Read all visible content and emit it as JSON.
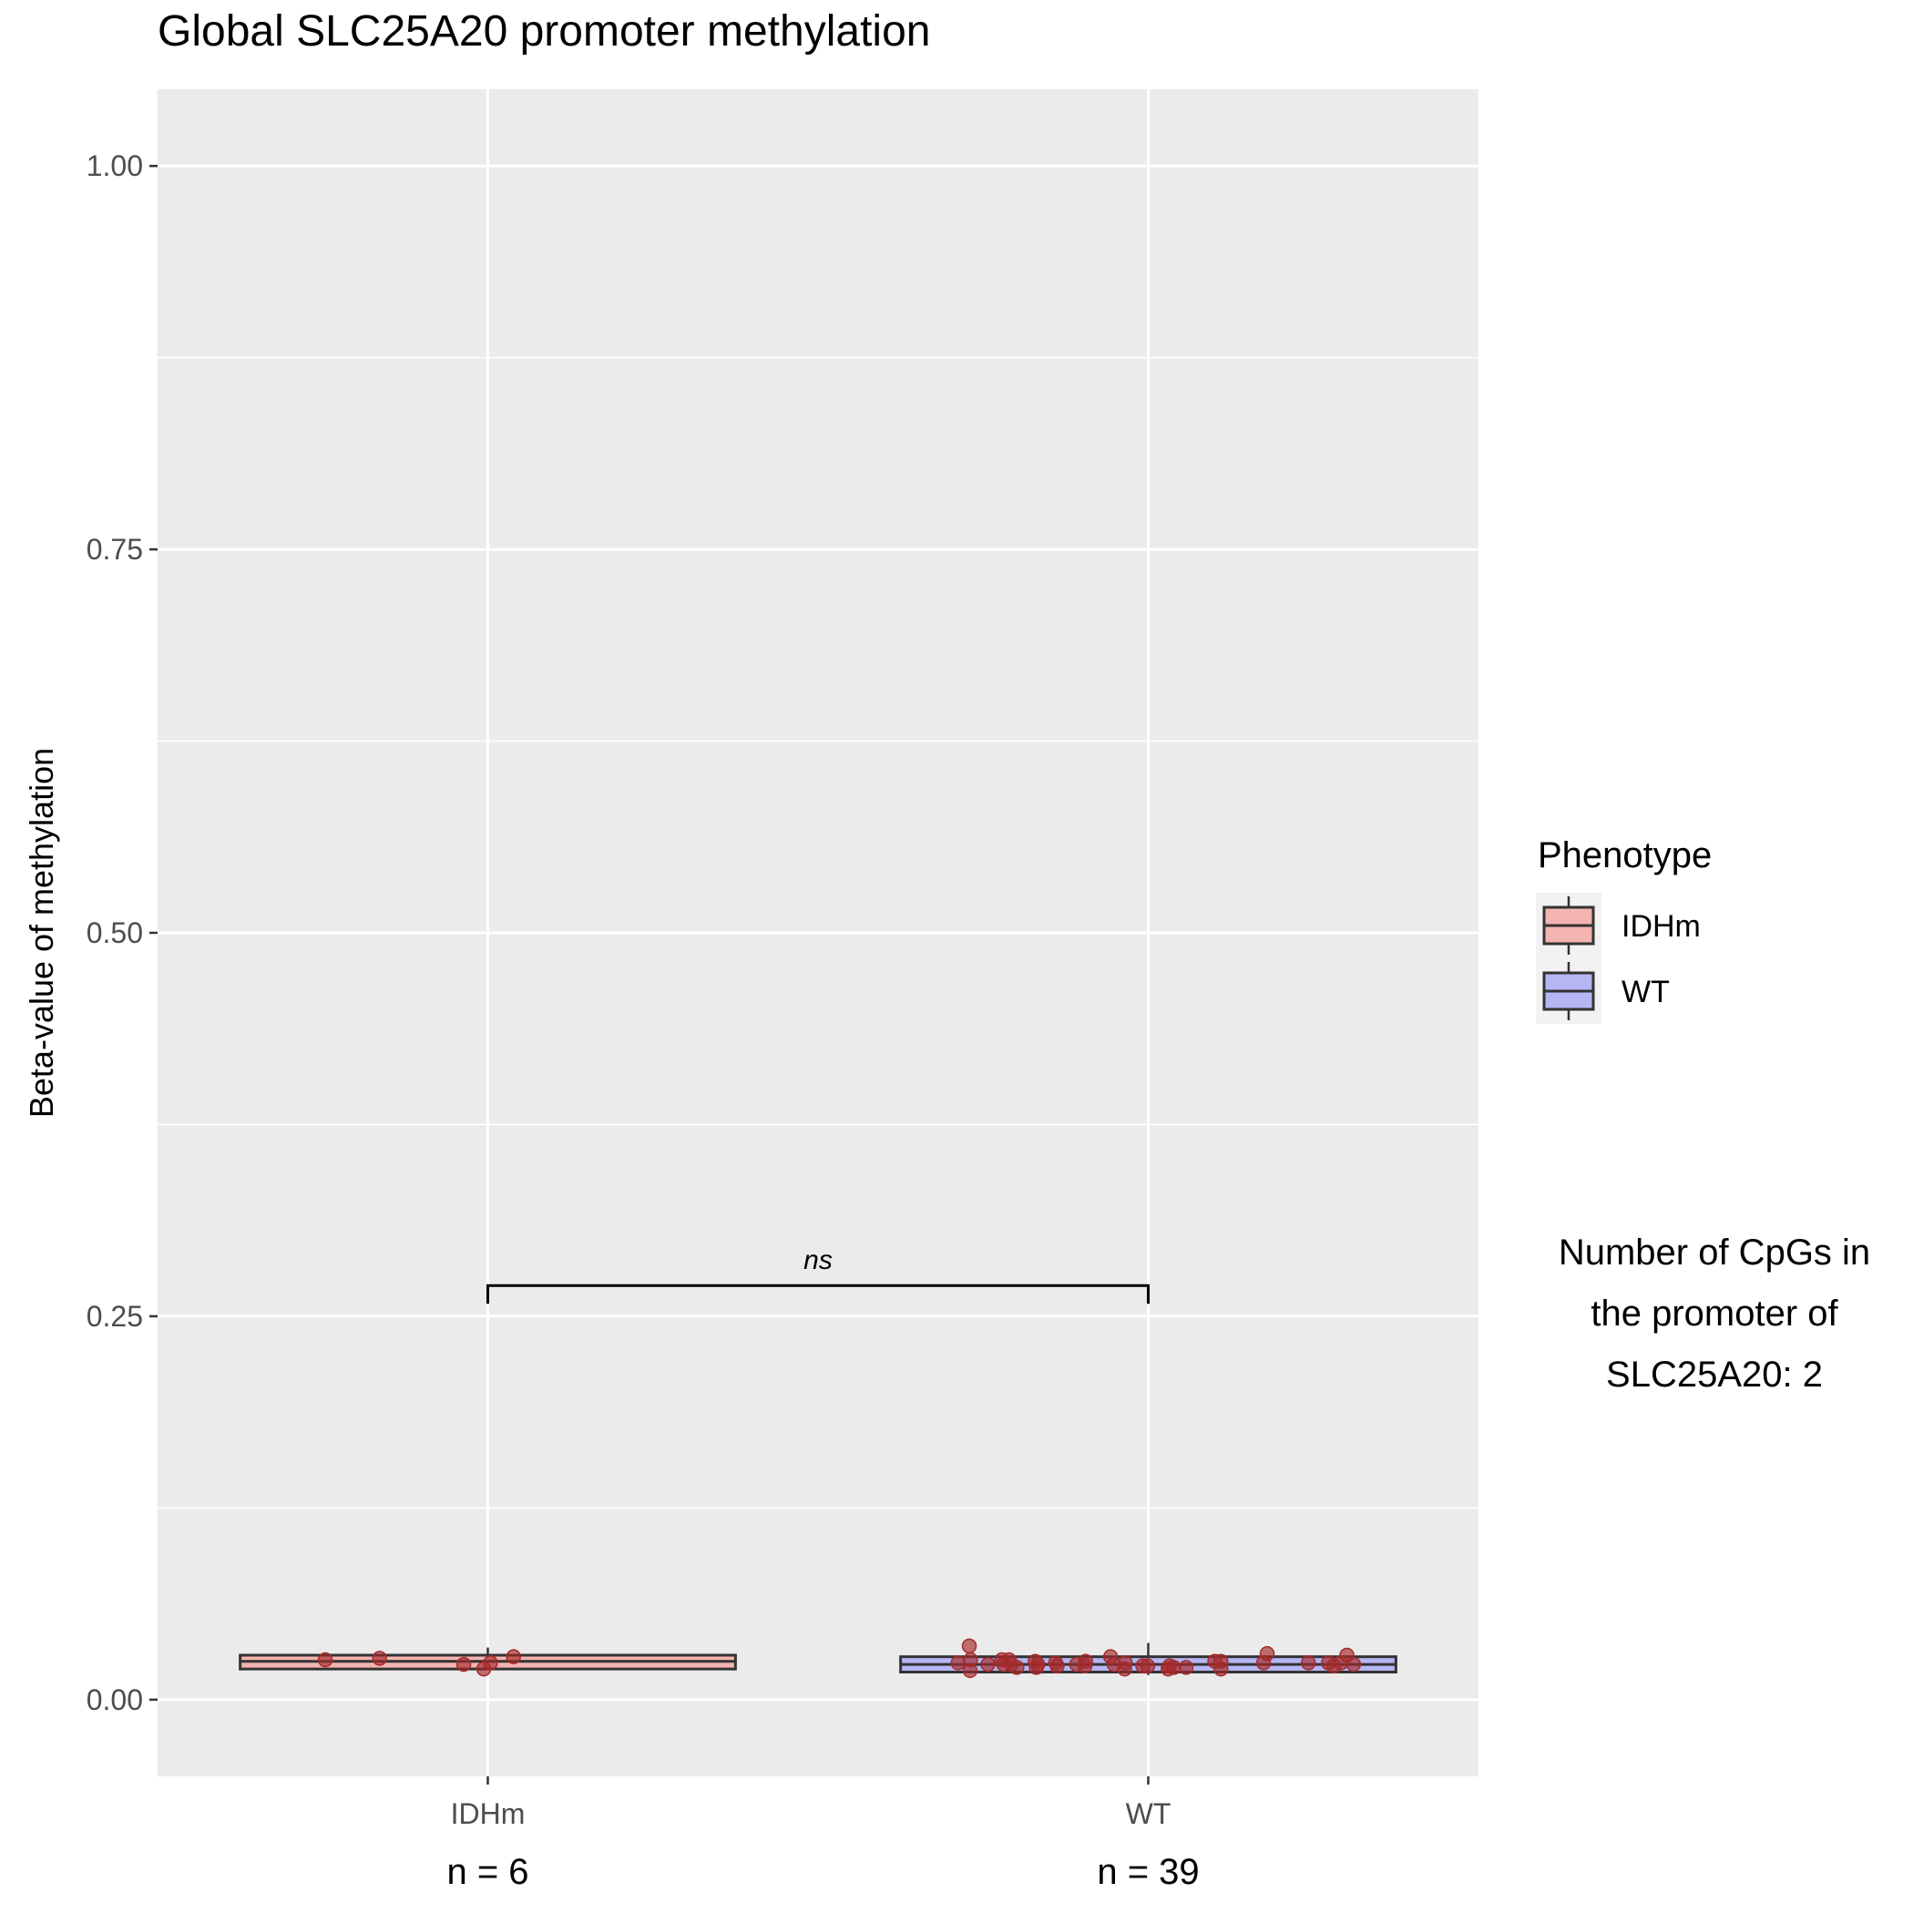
{
  "chart_data": {
    "type": "box",
    "title": "Global SLC25A20 promoter methylation",
    "xlabel": "",
    "ylabel": "Beta-value of methylation",
    "ylim": [
      -0.05,
      1.05
    ],
    "yticks": [
      0.0,
      0.25,
      0.5,
      0.75,
      1.0
    ],
    "ytick_labels": [
      "0.00",
      "0.25",
      "0.50",
      "0.75",
      "1.00"
    ],
    "grid": true,
    "categories": [
      "IDHm",
      "WT"
    ],
    "sample_sizes": [
      "n = 6",
      "n = 39"
    ],
    "boxes": [
      {
        "category": "IDHm",
        "min": 0.02,
        "q1": 0.02,
        "median": 0.025,
        "q3": 0.029,
        "max": 0.034,
        "fill": "#f4b4b1"
      },
      {
        "category": "WT",
        "min": 0.016,
        "q1": 0.018,
        "median": 0.023,
        "q3": 0.028,
        "max": 0.037,
        "fill": "#b6b6f4"
      }
    ],
    "points": [
      {
        "category": "IDHm",
        "y": [
          0.02,
          0.028,
          0.026,
          0.027,
          0.023,
          0.024
        ]
      },
      {
        "category": "WT",
        "y": [
          0.019,
          0.024,
          0.021,
          0.028,
          0.022,
          0.03,
          0.025,
          0.035,
          0.022,
          0.021,
          0.02,
          0.023,
          0.021,
          0.022,
          0.023,
          0.024,
          0.022,
          0.029,
          0.023,
          0.02,
          0.024,
          0.021,
          0.023,
          0.022,
          0.025,
          0.024,
          0.026,
          0.023,
          0.024,
          0.025,
          0.02,
          0.023,
          0.026,
          0.024,
          0.025,
          0.022,
          0.026,
          0.024,
          0.023
        ]
      }
    ],
    "point_color": "#a52a2a",
    "significance": {
      "from": "IDHm",
      "to": "WT",
      "y": 0.27,
      "label": "ns"
    },
    "legend": {
      "title": "Phenotype",
      "position": "right",
      "items": [
        {
          "label": "IDHm",
          "fill": "#f4b4b1"
        },
        {
          "label": "WT",
          "fill": "#b6b6f4"
        }
      ]
    },
    "annotation": [
      "Number of CpGs in",
      "the promoter of",
      "SLC25A20: 2"
    ]
  }
}
